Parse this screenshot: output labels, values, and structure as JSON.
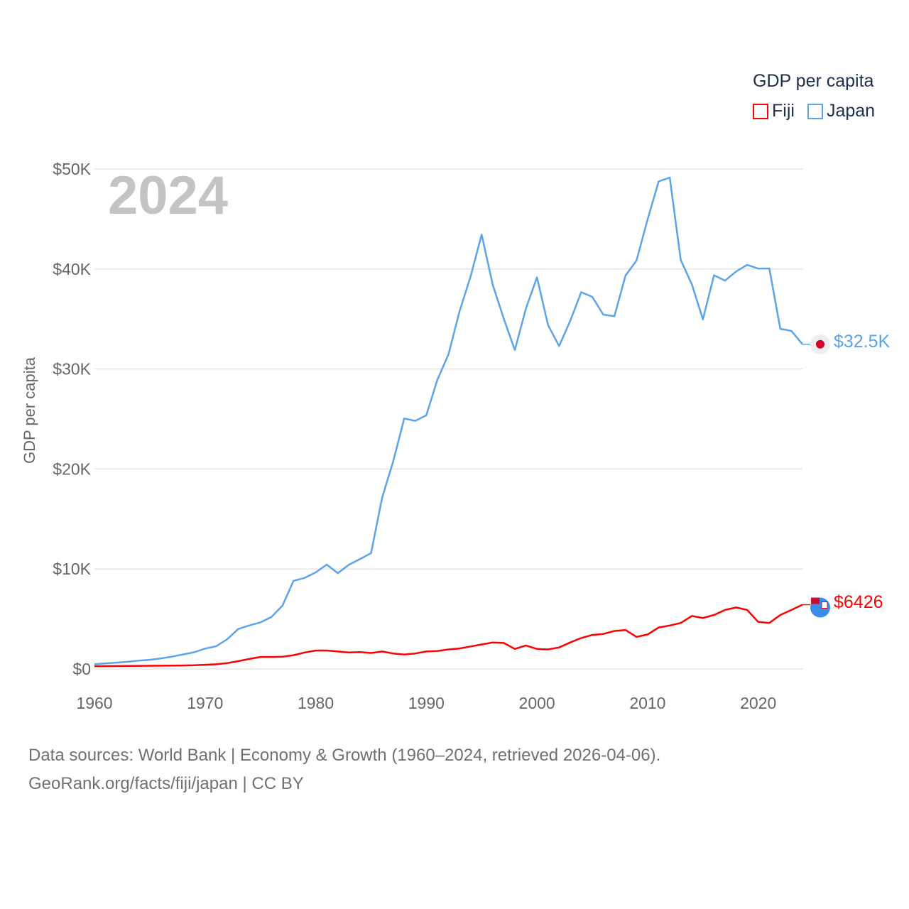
{
  "legend": {
    "title": "GDP per capita",
    "items": [
      {
        "name": "Fiji",
        "color": "#ff0000"
      },
      {
        "name": "Japan",
        "color": "#5ba4e8"
      }
    ]
  },
  "year_label": "2024",
  "footer": {
    "line1": "Data sources: World Bank | Economy & Growth (1960–2024, retrieved 2026-04-06).",
    "line2": "GeoRank.org/facts/fiji/japan | CC BY"
  },
  "end_labels": {
    "japan": "$32.5K",
    "fiji": "$6426"
  },
  "chart_data": {
    "type": "line",
    "title": "GDP per capita",
    "xlabel": "",
    "ylabel": "GDP per capita",
    "xlim": [
      1960,
      2024
    ],
    "ylim": [
      0,
      50000
    ],
    "x_ticks": [
      1960,
      1970,
      1980,
      1990,
      2000,
      2010,
      2020
    ],
    "y_ticks": [
      {
        "v": 0,
        "label": "$0"
      },
      {
        "v": 10000,
        "label": "$10K"
      },
      {
        "v": 20000,
        "label": "$20K"
      },
      {
        "v": 30000,
        "label": "$30K"
      },
      {
        "v": 40000,
        "label": "$40K"
      },
      {
        "v": 50000,
        "label": "$50K"
      }
    ],
    "grid": true,
    "legend_position": "top-right",
    "x_start": 1960,
    "series": [
      {
        "name": "Japan",
        "color": "#5ba4e8",
        "values": [
          479,
          564,
          634,
          718,
          835,
          919,
          1058,
          1229,
          1451,
          1669,
          2037,
          2272,
          2967,
          3997,
          4354,
          4659,
          5198,
          6335,
          8821,
          9106,
          9659,
          10440,
          9578,
          10425,
          10984,
          11584,
          17112,
          20745,
          25052,
          24813,
          25371,
          28925,
          31465,
          35766,
          39269,
          43440,
          38437,
          35022,
          31903,
          36027,
          39169,
          34406,
          32289,
          34808,
          37688,
          37218,
          35434,
          35275,
          39339,
          40855,
          44968,
          48760,
          49145,
          40898,
          38475,
          34961,
          39375,
          38834,
          39751,
          40416,
          40040,
          40059,
          34017,
          33806,
          32476
        ]
      },
      {
        "name": "Fiji",
        "color": "#ff0000",
        "values": [
          280,
          285,
          290,
          300,
          310,
          320,
          330,
          340,
          350,
          370,
          420,
          470,
          580,
          780,
          1000,
          1200,
          1200,
          1230,
          1380,
          1650,
          1850,
          1850,
          1750,
          1650,
          1680,
          1600,
          1750,
          1550,
          1450,
          1550,
          1750,
          1800,
          1950,
          2050,
          2250,
          2450,
          2650,
          2600,
          2000,
          2350,
          2000,
          1950,
          2150,
          2650,
          3100,
          3400,
          3500,
          3800,
          3900,
          3200,
          3450,
          4150,
          4350,
          4600,
          5300,
          5100,
          5400,
          5900,
          6150,
          5900,
          4700,
          4600,
          5400,
          5900,
          6426
        ]
      }
    ]
  }
}
